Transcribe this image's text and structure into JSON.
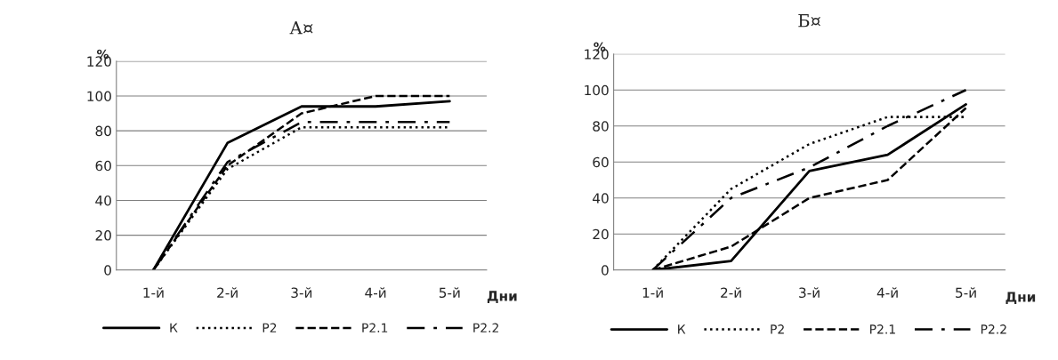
{
  "chart_data": [
    {
      "type": "line",
      "title": "А¤",
      "ylabel": "%",
      "xlabel": "Дни",
      "categories": [
        "1-й",
        "2-й",
        "3-й",
        "4-й",
        "5-й"
      ],
      "ylim": [
        0,
        120
      ],
      "yticks": [
        0,
        20,
        40,
        60,
        80,
        100,
        120
      ],
      "grid": "y",
      "legend": "bottom",
      "marker": "none",
      "series": [
        {
          "name": "К",
          "color": "#000000",
          "line_style": "solid",
          "values": [
            0,
            73,
            94,
            94,
            97
          ]
        },
        {
          "name": "Р2",
          "color": "#000000",
          "line_style": "dotted",
          "values": [
            0,
            58,
            82,
            82,
            82
          ]
        },
        {
          "name": "Р2.1",
          "color": "#000000",
          "line_style": "dashed",
          "values": [
            0,
            60,
            90,
            100,
            100
          ]
        },
        {
          "name": "Р2.2",
          "color": "#000000",
          "line_style": "dashdot",
          "values": [
            0,
            62,
            85,
            85,
            85
          ]
        }
      ]
    },
    {
      "type": "line",
      "title": "Б¤",
      "ylabel": "%",
      "xlabel": "Дни",
      "categories": [
        "1-й",
        "2-й",
        "3-й",
        "4-й",
        "5-й"
      ],
      "ylim": [
        0,
        120
      ],
      "yticks": [
        0,
        20,
        40,
        60,
        80,
        100,
        120
      ],
      "grid": "y",
      "legend": "bottom",
      "marker": "none",
      "series": [
        {
          "name": "К",
          "color": "#000000",
          "line_style": "solid",
          "values": [
            0,
            5,
            55,
            64,
            92
          ]
        },
        {
          "name": "Р2",
          "color": "#000000",
          "line_style": "dotted",
          "values": [
            0,
            45,
            70,
            85,
            85
          ]
        },
        {
          "name": "Р2.1",
          "color": "#000000",
          "line_style": "dashed",
          "values": [
            0,
            13,
            40,
            50,
            90
          ]
        },
        {
          "name": "Р2.2",
          "color": "#000000",
          "line_style": "dashdot",
          "values": [
            0,
            40,
            57,
            80,
            100
          ]
        }
      ]
    }
  ]
}
